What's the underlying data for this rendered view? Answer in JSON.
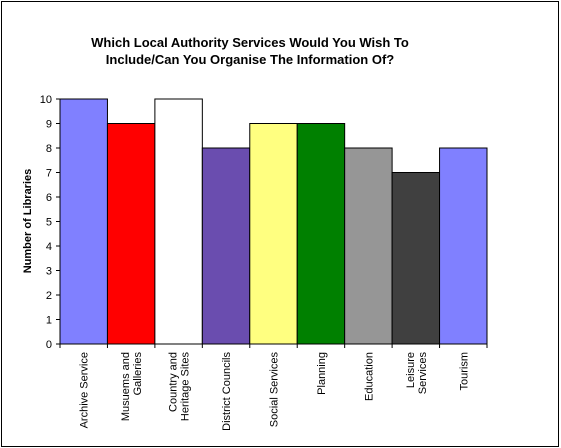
{
  "chart_data": {
    "type": "bar",
    "title_lines": [
      "Which Local Authority Services Would You Wish To",
      "Include/Can You Organise The Information Of?"
    ],
    "xlabel": "",
    "ylabel": "Number of Libraries",
    "ylim": [
      0,
      10
    ],
    "yticks": [
      "0",
      "1",
      "2",
      "3",
      "4",
      "5",
      "6",
      "7",
      "8",
      "9",
      "10"
    ],
    "grid": false,
    "legend": "none",
    "categories": [
      [
        "Archive Service"
      ],
      [
        "Musuems and",
        "Galleries"
      ],
      [
        "Country and",
        "Heritage Sites"
      ],
      [
        "District Councils"
      ],
      [
        "Social Services"
      ],
      [
        "Planning"
      ],
      [
        "Education"
      ],
      [
        "Leisure",
        "Services"
      ],
      [
        "Tourism"
      ]
    ],
    "values": [
      10,
      9,
      10,
      8,
      9,
      9,
      8,
      7,
      8
    ],
    "colors": [
      "#8080ff",
      "#ff0000",
      "#ffffff",
      "#6a4daf",
      "#ffff80",
      "#008000",
      "#969696",
      "#404040",
      "#8080ff"
    ]
  }
}
